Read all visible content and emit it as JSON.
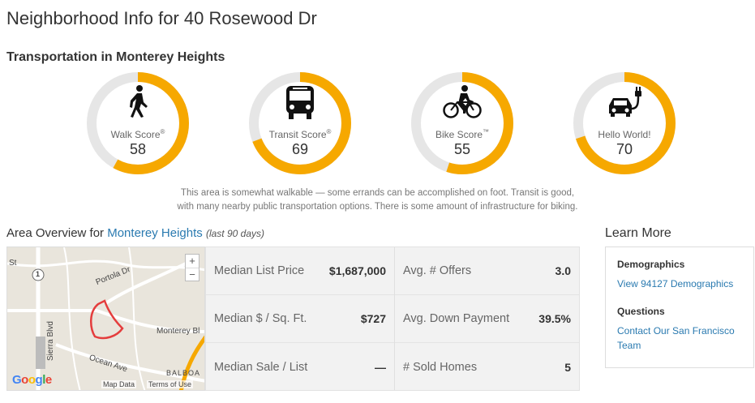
{
  "page": {
    "title": "Neighborhood Info for 40 Rosewood Dr"
  },
  "transportation": {
    "heading": "Transportation in Monterey Heights",
    "scores": [
      {
        "label": "Walk Score",
        "mark": "®",
        "value": "58",
        "fraction": 0.58,
        "icon": "walk-icon"
      },
      {
        "label": "Transit Score",
        "mark": "®",
        "value": "69",
        "fraction": 0.69,
        "icon": "bus-icon"
      },
      {
        "label": "Bike Score",
        "mark": "™",
        "value": "55",
        "fraction": 0.55,
        "icon": "bike-icon"
      },
      {
        "label": "Hello World!",
        "mark": "",
        "value": "70",
        "fraction": 0.7,
        "icon": "electric-car-icon"
      }
    ],
    "summary_line1": "This area is somewhat walkable — some errands can be accomplished on foot. Transit is good,",
    "summary_line2": "with many nearby public transportation options. There is some amount of infrastructure for biking.",
    "colors": {
      "ring": "#f6a800",
      "track": "#e6e6e6"
    }
  },
  "overview": {
    "prefix": "Area Overview for",
    "neighborhood_link": "Monterey Heights",
    "period": "(last 90 days)",
    "map": {
      "zoom_in": "+",
      "zoom_out": "−",
      "labels": {
        "portola": "Portola Dr",
        "monterey": "Monterey Bl",
        "ocean": "Ocean Ave",
        "balboa": "BALBOA",
        "sierra": "Sierra Blvd",
        "st": "St",
        "route": "1"
      },
      "logo": "Google",
      "map_data": "Map Data",
      "terms": "Terms of Use"
    },
    "stats": [
      {
        "label": "Median List Price",
        "value": "$1,687,000"
      },
      {
        "label": "Avg. # Offers",
        "value": "3.0"
      },
      {
        "label": "Median $ / Sq. Ft.",
        "value": "$727"
      },
      {
        "label": "Avg. Down Payment",
        "value": "39.5%"
      },
      {
        "label": "Median Sale / List",
        "value": "—"
      },
      {
        "label": "# Sold Homes",
        "value": "5"
      }
    ]
  },
  "learn_more": {
    "title": "Learn More",
    "demographics_heading": "Demographics",
    "demographics_link": "View 94127 Demographics",
    "questions_heading": "Questions",
    "questions_link": "Contact Our San Francisco Team"
  }
}
